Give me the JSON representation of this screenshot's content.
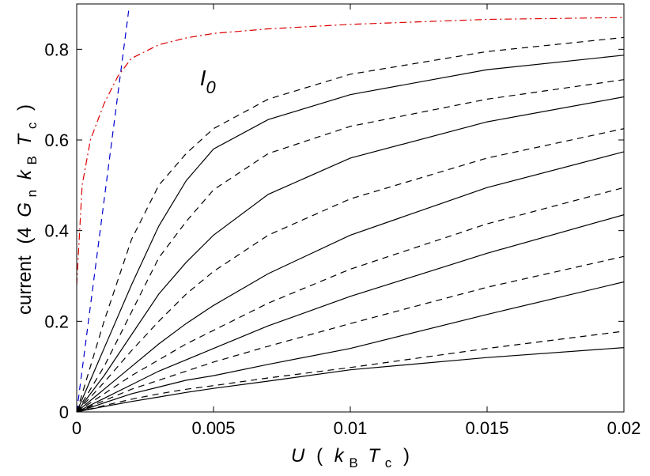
{
  "chart_data": {
    "type": "line",
    "xlabel": {
      "main": "U",
      "open": "(",
      "k": "k",
      "k_sub": "B",
      "t": "T",
      "t_sub": "c",
      "close": ")"
    },
    "ylabel": {
      "main": "current",
      "open": "(4",
      "g": "G",
      "g_sub": "n",
      "k": "k",
      "k_sub": "B",
      "t": "T",
      "t_sub": "c",
      "close": ")"
    },
    "xlim": [
      0,
      0.02
    ],
    "ylim": [
      0,
      0.9
    ],
    "xticks": [
      {
        "value": 0,
        "label": "0"
      },
      {
        "value": 0.005,
        "label": "0.005"
      },
      {
        "value": 0.01,
        "label": "0.01"
      },
      {
        "value": 0.015,
        "label": "0.015"
      },
      {
        "value": 0.02,
        "label": "0.02"
      }
    ],
    "yticks": [
      {
        "value": 0,
        "label": "0"
      },
      {
        "value": 0.2,
        "label": "0.2"
      },
      {
        "value": 0.4,
        "label": "0.4"
      },
      {
        "value": 0.6,
        "label": "0.6"
      },
      {
        "value": 0.8,
        "label": "0.8"
      }
    ],
    "grid": false,
    "annotation": {
      "text": "I",
      "sub": "0",
      "x": 0.0045,
      "y": 0.72
    },
    "series": [
      {
        "style": "dashdot",
        "color": "#dd0000",
        "x": [
          0,
          0.0002,
          0.0005,
          0.001,
          0.0015,
          0.002,
          0.003,
          0.004,
          0.005,
          0.007,
          0.01,
          0.015,
          0.02
        ],
        "y": [
          0.28,
          0.5,
          0.6,
          0.68,
          0.74,
          0.78,
          0.81,
          0.825,
          0.835,
          0.845,
          0.855,
          0.866,
          0.87
        ]
      },
      {
        "style": "dashed",
        "color": "#0000cc",
        "x": [
          0,
          0.0019
        ],
        "y": [
          0,
          0.885
        ]
      },
      {
        "style": "dashed",
        "color": "#000000",
        "x": [
          0,
          0.001,
          0.002,
          0.003,
          0.004,
          0.005,
          0.007,
          0.01,
          0.015,
          0.02
        ],
        "y": [
          0,
          0.2,
          0.38,
          0.5,
          0.57,
          0.625,
          0.69,
          0.745,
          0.795,
          0.826
        ]
      },
      {
        "style": "solid",
        "color": "#000000",
        "x": [
          0,
          0.001,
          0.002,
          0.003,
          0.004,
          0.005,
          0.007,
          0.01,
          0.015,
          0.02
        ],
        "y": [
          0,
          0.14,
          0.28,
          0.41,
          0.51,
          0.58,
          0.645,
          0.7,
          0.755,
          0.787
        ]
      },
      {
        "style": "dashed",
        "color": "#000000",
        "x": [
          0,
          0.001,
          0.002,
          0.003,
          0.004,
          0.005,
          0.007,
          0.01,
          0.015,
          0.02
        ],
        "y": [
          0,
          0.1,
          0.22,
          0.34,
          0.42,
          0.49,
          0.57,
          0.63,
          0.69,
          0.733
        ]
      },
      {
        "style": "solid",
        "color": "#000000",
        "x": [
          0,
          0.001,
          0.002,
          0.003,
          0.004,
          0.005,
          0.007,
          0.01,
          0.015,
          0.02
        ],
        "y": [
          0,
          0.08,
          0.17,
          0.26,
          0.33,
          0.39,
          0.48,
          0.56,
          0.64,
          0.695
        ]
      },
      {
        "style": "dashed",
        "color": "#000000",
        "x": [
          0,
          0.001,
          0.002,
          0.003,
          0.004,
          0.005,
          0.007,
          0.01,
          0.015,
          0.02
        ],
        "y": [
          0,
          0.065,
          0.135,
          0.2,
          0.26,
          0.31,
          0.39,
          0.47,
          0.56,
          0.625
        ]
      },
      {
        "style": "solid",
        "color": "#000000",
        "x": [
          0,
          0.001,
          0.002,
          0.003,
          0.004,
          0.005,
          0.007,
          0.01,
          0.015,
          0.02
        ],
        "y": [
          0,
          0.05,
          0.1,
          0.15,
          0.195,
          0.235,
          0.305,
          0.39,
          0.495,
          0.574
        ]
      },
      {
        "style": "dashed",
        "color": "#000000",
        "x": [
          0,
          0.001,
          0.002,
          0.003,
          0.004,
          0.005,
          0.007,
          0.01,
          0.015,
          0.02
        ],
        "y": [
          0,
          0.04,
          0.08,
          0.115,
          0.15,
          0.18,
          0.24,
          0.315,
          0.415,
          0.495
        ]
      },
      {
        "style": "solid",
        "color": "#000000",
        "x": [
          0,
          0.001,
          0.002,
          0.003,
          0.004,
          0.005,
          0.007,
          0.01,
          0.015,
          0.02
        ],
        "y": [
          0,
          0.03,
          0.06,
          0.09,
          0.115,
          0.14,
          0.19,
          0.255,
          0.35,
          0.435
        ]
      },
      {
        "style": "dashed",
        "color": "#000000",
        "x": [
          0,
          0.001,
          0.002,
          0.003,
          0.004,
          0.005,
          0.007,
          0.01,
          0.015,
          0.02
        ],
        "y": [
          0,
          0.025,
          0.05,
          0.07,
          0.09,
          0.11,
          0.145,
          0.195,
          0.275,
          0.343
        ]
      },
      {
        "style": "solid",
        "color": "#000000",
        "x": [
          0,
          0.001,
          0.002,
          0.003,
          0.004,
          0.005,
          0.007,
          0.01,
          0.015,
          0.02
        ],
        "y": [
          0,
          0.02,
          0.04,
          0.055,
          0.07,
          0.08,
          0.105,
          0.14,
          0.215,
          0.287
        ]
      },
      {
        "style": "dashed",
        "color": "#000000",
        "x": [
          0,
          0.001,
          0.002,
          0.003,
          0.004,
          0.005,
          0.007,
          0.01,
          0.015,
          0.02
        ],
        "y": [
          0,
          0.014,
          0.028,
          0.04,
          0.05,
          0.058,
          0.075,
          0.098,
          0.14,
          0.178
        ]
      },
      {
        "style": "solid",
        "color": "#000000",
        "x": [
          0,
          0.001,
          0.002,
          0.003,
          0.004,
          0.005,
          0.007,
          0.01,
          0.015,
          0.02
        ],
        "y": [
          0,
          0.012,
          0.023,
          0.033,
          0.043,
          0.052,
          0.068,
          0.093,
          0.12,
          0.142
        ]
      }
    ]
  }
}
